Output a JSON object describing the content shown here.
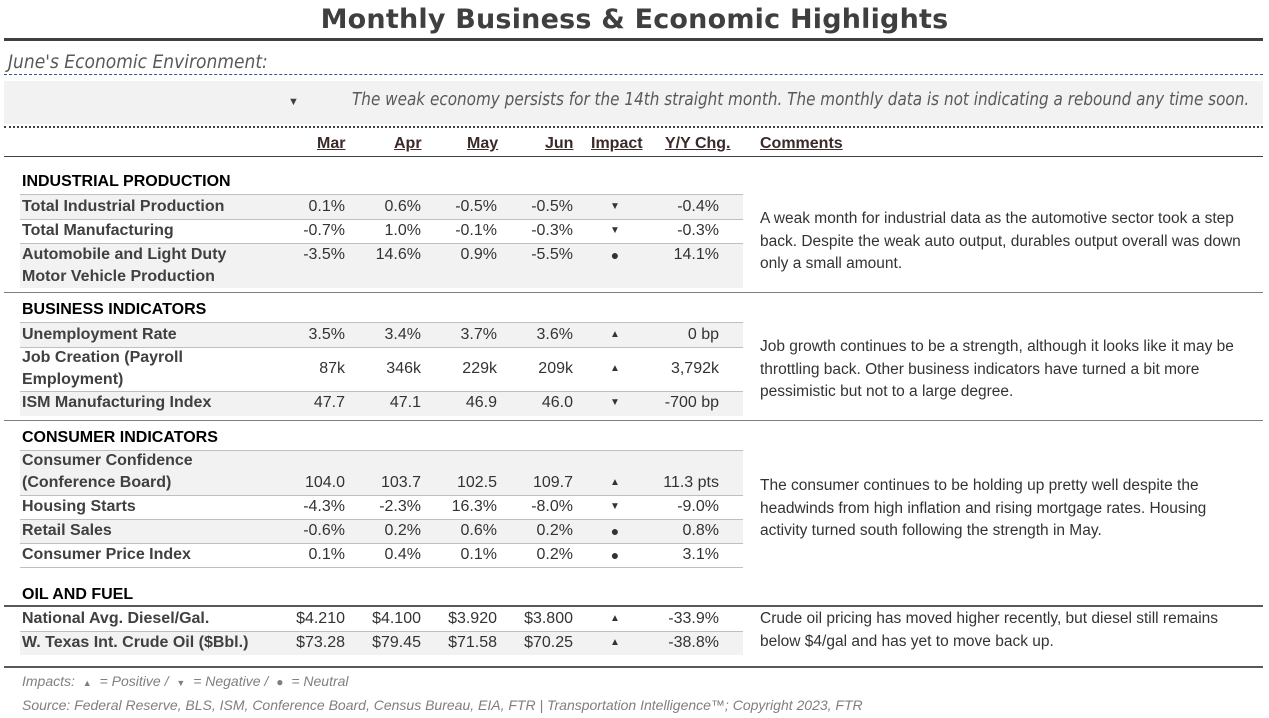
{
  "title": "Monthly Business & Economic Highlights",
  "subtitle": "June's Economic Environment:",
  "summary": {
    "impact_icon": "triangle-down-icon",
    "text": "The weak economy persists for the 14th straight month. The monthly data is not indicating a rebound any time soon."
  },
  "headers": {
    "mar": "Mar",
    "apr": "Apr",
    "may": "May",
    "jun": "Jun",
    "impact": "Impact",
    "yoy": "Y/Y Chg.",
    "comments": "Comments"
  },
  "sections": {
    "industrial": {
      "title": "INDUSTRIAL PRODUCTION",
      "rows": [
        {
          "label": "Total Industrial Production",
          "mar": "0.1%",
          "apr": "0.6%",
          "may": "-0.5%",
          "jun": "-0.5%",
          "impact": "▼",
          "yoy": "-0.4%"
        },
        {
          "label": "Total Manufacturing",
          "mar": "-0.7%",
          "apr": "1.0%",
          "may": "-0.1%",
          "jun": "-0.3%",
          "impact": "▼",
          "yoy": "-0.3%"
        },
        {
          "label": "Automobile and Light Duty",
          "label2": "Motor Vehicle Production",
          "mar": "-3.5%",
          "apr": "14.6%",
          "may": "0.9%",
          "jun": "-5.5%",
          "impact": "●",
          "yoy": "14.1%"
        }
      ],
      "comment": "A weak month for industrial data as the automotive sector took a step back. Despite the weak auto output, durables output overall was down only a small amount."
    },
    "business": {
      "title": "BUSINESS INDICATORS",
      "rows": [
        {
          "label": "Unemployment Rate",
          "mar": "3.5%",
          "apr": "3.4%",
          "may": "3.7%",
          "jun": "3.6%",
          "impact": "▲",
          "yoy": "0 bp"
        },
        {
          "label": "Job Creation (Payroll",
          "label2": "Employment)",
          "mar": "87k",
          "apr": "346k",
          "may": "229k",
          "jun": "209k",
          "impact": "▲",
          "yoy": "3,792k"
        },
        {
          "label": "ISM Manufacturing Index",
          "mar": "47.7",
          "apr": "47.1",
          "may": "46.9",
          "jun": "46.0",
          "impact": "▼",
          "yoy": "-700 bp"
        }
      ],
      "comment": "Job growth continues to be a strength, although it looks like it may be throttling back. Other business indicators have turned a bit more pessimistic but not to a large degree."
    },
    "consumer": {
      "title": "CONSUMER INDICATORS",
      "rows": [
        {
          "label": "Consumer Confidence",
          "label2": "(Conference Board)",
          "mar": "104.0",
          "apr": "103.7",
          "may": "102.5",
          "jun": "109.7",
          "impact": "▲",
          "yoy": "11.3 pts"
        },
        {
          "label": "Housing Starts",
          "mar": "-4.3%",
          "apr": "-2.3%",
          "may": "16.3%",
          "jun": "-8.0%",
          "impact": "▼",
          "yoy": "-9.0%"
        },
        {
          "label": "Retail Sales",
          "mar": "-0.6%",
          "apr": "0.2%",
          "may": "0.6%",
          "jun": "0.2%",
          "impact": "●",
          "yoy": "0.8%"
        },
        {
          "label": "Consumer Price Index",
          "mar": "0.1%",
          "apr": "0.4%",
          "may": "0.1%",
          "jun": "0.2%",
          "impact": "●",
          "yoy": "3.1%"
        }
      ],
      "comment": "The consumer continues to be holding up pretty well despite the headwinds from high inflation and rising mortgage rates. Housing activity turned south following the strength in May."
    },
    "oil": {
      "title": "OIL AND FUEL",
      "rows": [
        {
          "label": "National Avg. Diesel/Gal.",
          "mar": "$4.210",
          "apr": "$4.100",
          "may": "$3.920",
          "jun": "$3.800",
          "impact": "▲",
          "yoy": "-33.9%"
        },
        {
          "label": "W. Texas Int. Crude Oil ($Bbl.)",
          "mar": "$73.28",
          "apr": "$79.45",
          "may": "$71.58",
          "jun": "$70.25",
          "impact": "▲",
          "yoy": "-38.8%"
        }
      ],
      "comment": "Crude oil pricing has moved higher recently, but diesel still remains below $4/gal and has yet to move back up."
    }
  },
  "footer": {
    "impacts_prefix": "Impacts:",
    "positive": "= Positive /",
    "negative": "= Negative /",
    "neutral": "= Neutral",
    "source": "Source: Federal Reserve, BLS, ISM, Conference Board, Census Bureau, EIA, FTR | Transportation Intelligence™; Copyright 2023, FTR"
  }
}
